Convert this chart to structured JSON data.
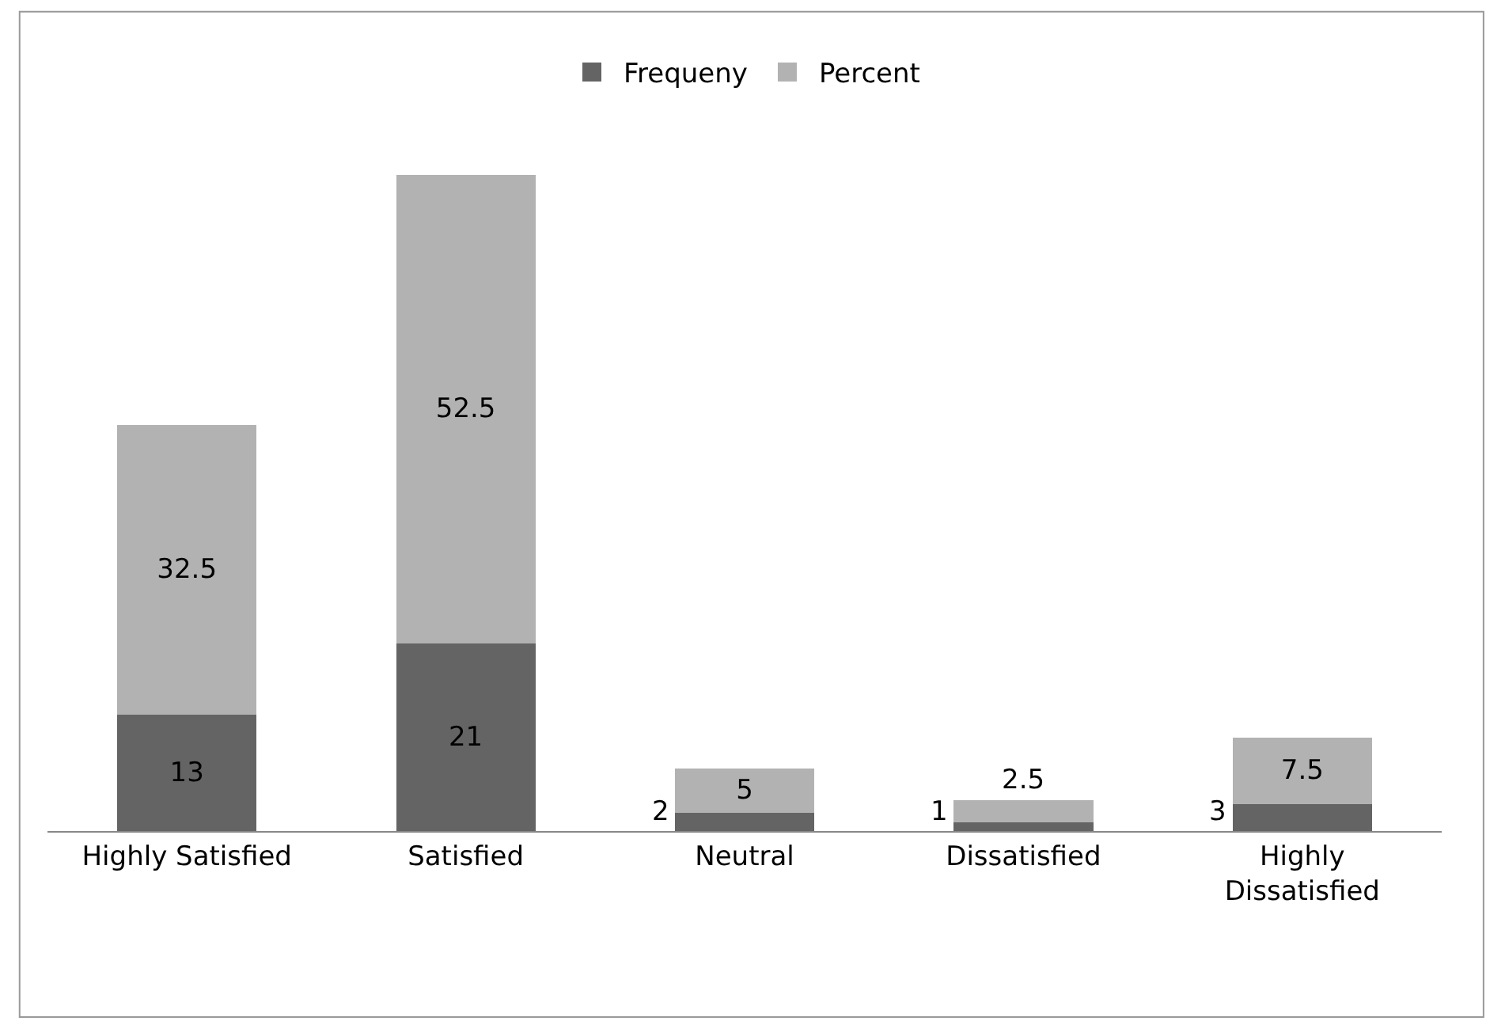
{
  "chart_data": {
    "type": "bar",
    "stacked": true,
    "categories": [
      "Highly Satisfied",
      "Satisfied",
      "Neutral",
      "Dissatisfied",
      "Highly Dissatisfied"
    ],
    "series": [
      {
        "name": "Frequeny",
        "color": "#646464",
        "values": [
          13,
          21,
          2,
          1,
          3
        ]
      },
      {
        "name": "Percent",
        "color": "#b2b2b2",
        "values": [
          32.5,
          52.5,
          5,
          2.5,
          7.5
        ]
      }
    ],
    "data_labels": true,
    "legend": "top"
  }
}
